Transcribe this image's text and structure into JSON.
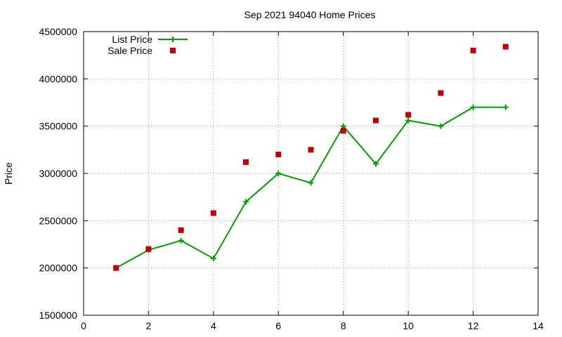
{
  "chart_data": {
    "type": "line",
    "title": "Sep 2021 94040 Home Prices",
    "xlabel": "",
    "ylabel": "Price",
    "xlim": [
      0,
      14
    ],
    "ylim": [
      1500000,
      4500000
    ],
    "x_ticks": [
      0,
      2,
      4,
      6,
      8,
      10,
      12,
      14
    ],
    "y_ticks": [
      1500000,
      2000000,
      2500000,
      3000000,
      3500000,
      4000000,
      4500000
    ],
    "grid": true,
    "legend_position": "top-left",
    "series": [
      {
        "name": "List Price",
        "style": "line+cross",
        "color": "#00a000",
        "x": [
          1,
          2,
          3,
          4,
          5,
          6,
          7,
          8,
          9,
          10,
          11,
          12,
          13
        ],
        "y": [
          2000000,
          2190000,
          2290000,
          2100000,
          2700000,
          3000000,
          2900000,
          3500000,
          3100000,
          3560000,
          3500000,
          3700000,
          3700000
        ]
      },
      {
        "name": "Sale Price",
        "style": "square-points",
        "color": "#c00000",
        "x": [
          1,
          2,
          3,
          4,
          5,
          6,
          7,
          8,
          9,
          10,
          11,
          12,
          13
        ],
        "y": [
          2000000,
          2200000,
          2400000,
          2580000,
          3120000,
          3200000,
          3250000,
          3450000,
          3560000,
          3620000,
          3850000,
          4300000,
          4340000
        ]
      }
    ]
  }
}
